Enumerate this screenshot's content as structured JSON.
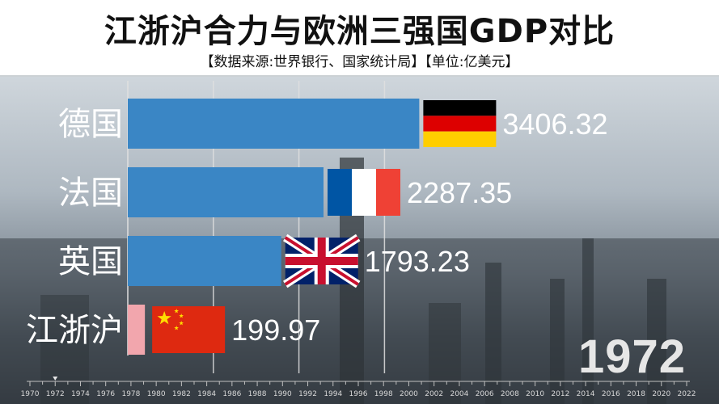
{
  "header": {
    "title": "江浙沪合力与欧洲三强国GDP对比",
    "subtitle": "【数据来源:世界银行、国家统计局】【单位:亿美元】"
  },
  "year": "1972",
  "colors": {
    "bar_main": "#3a86c5",
    "bar_jzh": "#f2a6ad",
    "text_dark": "#111111",
    "text_light": "#ffffff",
    "gridline": "#e0e0e0",
    "axis": "#bfbfbf"
  },
  "chart_data": {
    "type": "bar",
    "orientation": "horizontal",
    "title": "江浙沪合力与欧洲三强国GDP对比",
    "unit": "亿美元",
    "categories": [
      "德国",
      "法国",
      "英国",
      "江浙沪"
    ],
    "values": [
      3406.32,
      2287.35,
      1793.23,
      199.97
    ],
    "value_labels": [
      "3406.32",
      "2287.35",
      "1793.23",
      "199.97"
    ],
    "flags": [
      "germany-flag",
      "france-flag",
      "uk-flag",
      "china-flag"
    ],
    "gridlines": [
      1000,
      2000,
      3000
    ],
    "xlim": [
      0,
      4500
    ],
    "timeline": {
      "ticks": [
        "1970",
        "1972",
        "1974",
        "1976",
        "1978",
        "1980",
        "1982",
        "1984",
        "1986",
        "1988",
        "1990",
        "1992",
        "1994",
        "1996",
        "1998",
        "2000",
        "2002",
        "2004",
        "2006",
        "2008",
        "2010",
        "2012",
        "2014",
        "2016",
        "2018",
        "2020",
        "2022"
      ],
      "current": "1972"
    }
  }
}
